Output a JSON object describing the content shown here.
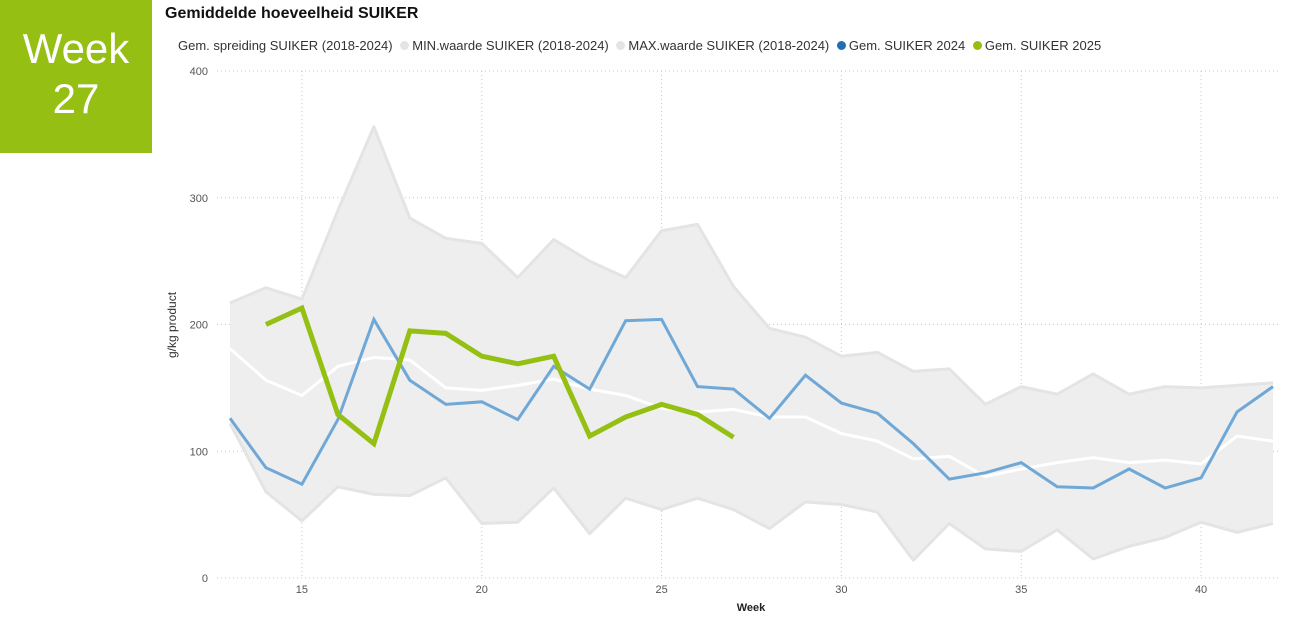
{
  "badge": {
    "line1": "Week",
    "line2": "27"
  },
  "chart_data": {
    "type": "line",
    "title": "Gemiddelde hoeveelheid SUIKER",
    "xlabel": "Week",
    "ylabel": "g/kg product",
    "xlim": [
      13,
      42
    ],
    "ylim": [
      0,
      400
    ],
    "x_ticks": [
      15,
      20,
      25,
      30,
      35,
      40
    ],
    "y_ticks": [
      0,
      100,
      200,
      300,
      400
    ],
    "grid": true,
    "legend_position": "top",
    "legend": [
      {
        "label": "Gem. spreiding SUIKER (2018-2024)",
        "color": "",
        "dot": false
      },
      {
        "label": "MIN.waarde SUIKER (2018-2024)",
        "color": "#E4E4E4",
        "dot": true
      },
      {
        "label": "MAX.waarde SUIKER (2018-2024)",
        "color": "#E4E4E4",
        "dot": true
      },
      {
        "label": "Gem. SUIKER 2024",
        "color": "#1F6FB5",
        "dot": true
      },
      {
        "label": "Gem. SUIKER 2025",
        "color": "#95BF13",
        "dot": true
      }
    ],
    "band": {
      "x": [
        13,
        14,
        15,
        16,
        17,
        18,
        19,
        20,
        21,
        22,
        23,
        24,
        25,
        26,
        27,
        28,
        29,
        30,
        31,
        32,
        33,
        34,
        35,
        36,
        37,
        38,
        39,
        40,
        41,
        42
      ],
      "min": [
        122,
        68,
        45,
        72,
        66,
        65,
        79,
        43,
        44,
        71,
        35,
        63,
        54,
        63,
        54,
        39,
        60,
        58,
        52,
        14,
        43,
        23,
        21,
        38,
        15,
        25,
        32,
        44,
        36,
        43
      ],
      "max": [
        217,
        229,
        220,
        290,
        356,
        284,
        268,
        264,
        237,
        267,
        250,
        237,
        274,
        279,
        230,
        197,
        190,
        175,
        178,
        163,
        165,
        137,
        151,
        145,
        161,
        145,
        151,
        150,
        152,
        154
      ],
      "min_color": "#E4E4E4",
      "max_color": "#E4E4E4",
      "fill_color": "#EEEEEE"
    },
    "series": [
      {
        "name": "Gem. spreiding SUIKER (2018-2024)",
        "color": "#FFFFFF",
        "x": [
          13,
          14,
          15,
          16,
          17,
          18,
          19,
          20,
          21,
          22,
          23,
          24,
          25,
          26,
          27,
          28,
          29,
          30,
          31,
          32,
          33,
          34,
          35,
          36,
          37,
          38,
          39,
          40,
          41,
          42
        ],
        "values": [
          181,
          156,
          144,
          167,
          174,
          172,
          150,
          148,
          152,
          157,
          149,
          144,
          134,
          131,
          133,
          127,
          127,
          114,
          108,
          94,
          96,
          80,
          86,
          91,
          95,
          91,
          93,
          90,
          112,
          108
        ]
      },
      {
        "name": "Gem. SUIKER 2024",
        "color": "#6FA8D6",
        "x": [
          13,
          14,
          15,
          16,
          17,
          18,
          19,
          20,
          21,
          22,
          23,
          24,
          25,
          26,
          27,
          28,
          29,
          30,
          31,
          32,
          33,
          34,
          35,
          36,
          37,
          38,
          39,
          40,
          41,
          42
        ],
        "values": [
          126,
          87,
          74,
          125,
          204,
          156,
          137,
          139,
          125,
          167,
          149,
          203,
          204,
          151,
          149,
          126,
          160,
          138,
          130,
          106,
          78,
          83,
          91,
          72,
          71,
          86,
          71,
          79,
          131,
          151
        ]
      },
      {
        "name": "Gem. SUIKER 2025",
        "color": "#95BF13",
        "x": [
          14,
          15,
          16,
          17,
          18,
          19,
          20,
          21,
          22,
          23,
          24,
          25,
          26,
          27
        ],
        "values": [
          200,
          213,
          129,
          106,
          195,
          193,
          175,
          169,
          175,
          112,
          127,
          137,
          129,
          111
        ]
      }
    ]
  }
}
